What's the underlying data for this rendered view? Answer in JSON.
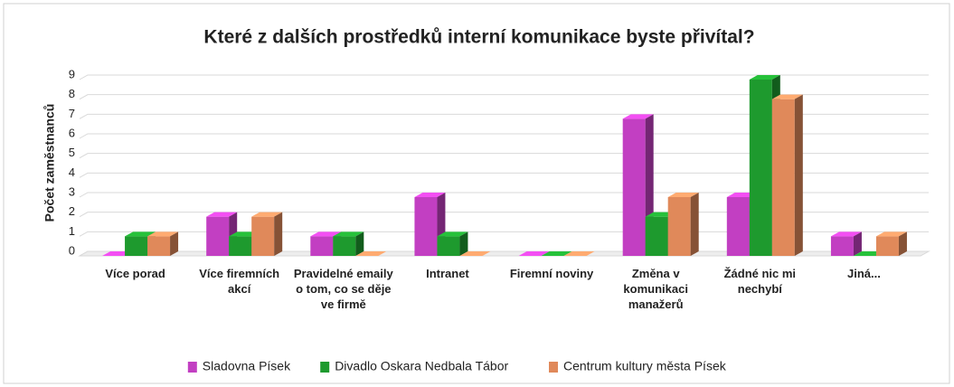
{
  "chart_data": {
    "type": "bar3d",
    "title": "Které z dalších prostředků interní komunikace byste přivítal?",
    "y_label": "Počet zaměstnanců",
    "categories": [
      "Více porad",
      "Více firemních akcí",
      "Pravidelné emaily o tom, co se děje ve firmě",
      "Intranet",
      "Firemní noviny",
      "Změna v komunikaci manažerů",
      "Žádné nic mi nechybí",
      "Jiná..."
    ],
    "series": [
      {
        "name": "Sladovna Písek",
        "color": "#c23fc2",
        "values": [
          0,
          2,
          1,
          3,
          0,
          7,
          3,
          1
        ]
      },
      {
        "name": "Divadlo Oskara Nedbala Tábor",
        "color": "#1e9a2e",
        "values": [
          1,
          1,
          1,
          1,
          0,
          2,
          9,
          0
        ]
      },
      {
        "name": "Centrum kultury města Písek",
        "color": "#e0895a",
        "values": [
          1,
          2,
          0,
          0,
          0,
          3,
          8,
          1
        ]
      }
    ],
    "ylim": [
      0,
      9
    ],
    "yticks": [
      0,
      1,
      2,
      3,
      4,
      5,
      6,
      7,
      8,
      9
    ],
    "grid": true,
    "legend": "bottom"
  }
}
